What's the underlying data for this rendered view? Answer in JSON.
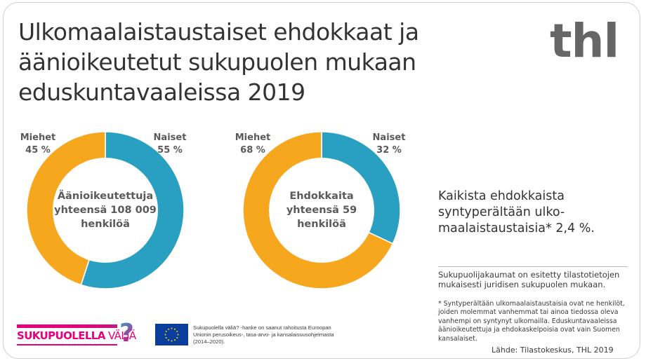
{
  "title": {
    "line1": "Ulkomaalaistaustaiset ehdokkaat ja",
    "line2": "äänioikeutetut sukupuolen mukaan",
    "line3": "eduskuntavaaleissa 2019"
  },
  "logo": {
    "text": "thl"
  },
  "colors": {
    "men": "#F7A71E",
    "women": "#29A0C1",
    "text": "#5a5a5a",
    "brand_pink": "#E6007E",
    "eu_blue": "#0B3D9C",
    "eu_star": "#FFDD00"
  },
  "donuts": [
    {
      "men_label": "Miehet",
      "men_value": "45 %",
      "women_label": "Naiset",
      "women_value": "55 %",
      "center_line1": "Äänioikeutettuja",
      "center_line2": "yhteensä 108 009",
      "center_line3": "henkilöä"
    },
    {
      "men_label": "Miehet",
      "men_value": "68 %",
      "women_label": "Naiset",
      "women_value": "32 %",
      "center_line1": "Ehdokkaita",
      "center_line2": "yhteensä 59",
      "center_line3": "henkilöä"
    }
  ],
  "chart_data": [
    {
      "type": "pie",
      "title": "Äänioikeutettuja yhteensä 108 009 henkilöä",
      "categories": [
        "Naiset",
        "Miehet"
      ],
      "values": [
        55,
        45
      ],
      "unit": "%",
      "colors": [
        "#29A0C1",
        "#F7A71E"
      ],
      "donut": true
    },
    {
      "type": "pie",
      "title": "Ehdokkaita yhteensä 59 henkilöä",
      "categories": [
        "Naiset",
        "Miehet"
      ],
      "values": [
        32,
        68
      ],
      "unit": "%",
      "colors": [
        "#29A0C1",
        "#F7A71E"
      ],
      "donut": true
    }
  ],
  "stat": {
    "line1": "Kaikista ehdokkaista",
    "line2": "syntyperältään ulko-",
    "line3": "maalaistaustaisia* 2,4 %."
  },
  "notes": {
    "note1": "Sukupuolijakaumat on esitetty tilastotietojen mukaisesti juridisen sukupuolen mukaan.",
    "note2": "* Syntyperältään ulkomaalaistaustaisia ovat ne henkilöt, joiden molemmat vanhemmat tai ainoa tiedossa oleva vanhempi on syntynyt ulkomailla. Eduskuntavaaleissa äänioikeutettuja ja ehdokaskelpoisia ovat vain Suomen kansalaiset.",
    "source": "Lähde: Tilastokeskus, THL 2019"
  },
  "footer": {
    "project_logo_bold": "SUKUPUOLELLA",
    "project_logo_light": "VÄLIÄ",
    "project_logo_mark": "?",
    "eu_text": "Sukupuolella väliä? -hanke on saanut rahoitusta Euroopan Unionin perusoikeus-, tasa-arvo- ja kansalaisuusohjelmasta (2014–2020)."
  }
}
